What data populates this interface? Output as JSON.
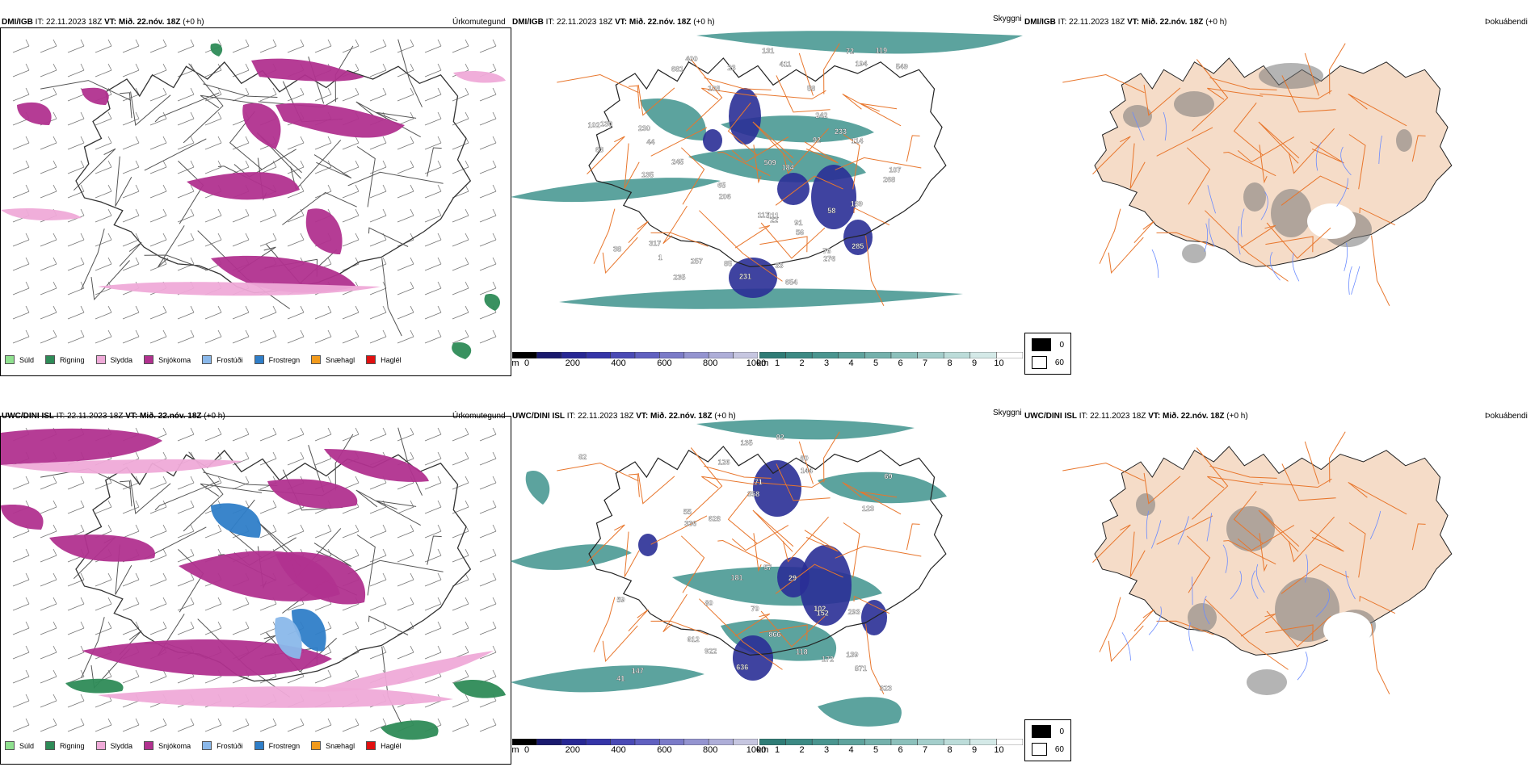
{
  "colors": {
    "snow": "#b1318f",
    "sleet": "#efaad8",
    "rain": "#2e8b57",
    "drizzle": "#8fe08f",
    "frost_mist": "#8ab8ea",
    "freezing_rain": "#2f7ec8",
    "snow_hail": "#f19a1c",
    "hail": "#e01010",
    "cloud_teal": "#3f938d",
    "cloud_blue": "#2a2f96",
    "road": "#e8762c",
    "land": "#f5dcc8",
    "river": "#6a8bff"
  },
  "rows": [
    {
      "model": "DMI/IGB",
      "it_label": "IT:",
      "it_value": "22.11.2023 18Z",
      "vt_label": "VT:",
      "vt_value": "Mið. 22.nóv. 18Z",
      "offset": "(+0 h)",
      "precip_label": "Úrkomutegund",
      "cloud_label": "Skyggni",
      "fog_label": "Þokuábendi",
      "cloud_numbers": [
        "654",
        "681",
        "317",
        "230",
        "233",
        "33",
        "268",
        "245",
        "206",
        "1",
        "38",
        "102",
        "65",
        "111",
        "92",
        "72",
        "63",
        "194",
        "58",
        "114",
        "76",
        "22",
        "235",
        "276",
        "184",
        "242",
        "135",
        "44",
        "231",
        "108",
        "56",
        "119",
        "58",
        "257",
        "400",
        "85",
        "131",
        "130",
        "107",
        "91",
        "23",
        "509",
        "549",
        "285",
        "411",
        "189",
        "117"
      ]
    },
    {
      "model": "UWC/DINI ISL",
      "it_label": "IT:",
      "it_value": "22.11.2023 18Z",
      "vt_label": "VT:",
      "vt_value": "Mið. 22.nóv. 18Z",
      "offset": "(+0 h)",
      "precip_label": "Úrkomutegund",
      "cloud_label": "Skyggni",
      "fog_label": "Þokuábendi",
      "cloud_numbers": [
        "41",
        "293",
        "57",
        "70",
        "126",
        "92",
        "139",
        "60",
        "172",
        "612",
        "323",
        "336",
        "922",
        "135",
        "118",
        "55",
        "102",
        "59",
        "181",
        "69",
        "82",
        "147",
        "636",
        "29",
        "152",
        "144",
        "628",
        "358",
        "123",
        "866",
        "871",
        "80",
        "71"
      ]
    }
  ],
  "precip_legend": [
    "Súld",
    "Rigning",
    "Slydda",
    "Snjókoma",
    "Frostúði",
    "Frostregn",
    "Snæhagl",
    "Haglél"
  ],
  "height_bar": {
    "unit": "m",
    "ticks": [
      "0",
      "200",
      "400",
      "600",
      "800",
      "1000"
    ]
  },
  "vis_bar": {
    "unit": "km",
    "ticks": [
      "1",
      "2",
      "3",
      "4",
      "5",
      "6",
      "7",
      "8",
      "9",
      "10"
    ]
  },
  "fog_legend": [
    "0",
    "60"
  ]
}
